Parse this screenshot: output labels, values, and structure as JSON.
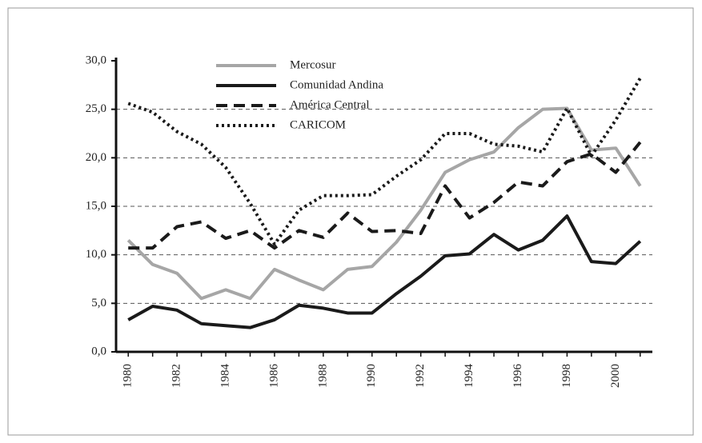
{
  "chart_data": {
    "type": "line",
    "x": [
      1980,
      1981,
      1982,
      1983,
      1984,
      1985,
      1986,
      1987,
      1988,
      1989,
      1990,
      1991,
      1992,
      1993,
      1994,
      1995,
      1996,
      1997,
      1998,
      1999,
      2000,
      2001
    ],
    "xlim": [
      1979.5,
      2001.5
    ],
    "xticks": [
      1980,
      1982,
      1984,
      1986,
      1988,
      1990,
      1992,
      1994,
      1996,
      1998,
      2000
    ],
    "ylim": [
      0,
      30
    ],
    "yticks": [
      {
        "value": 0,
        "label": "0,0"
      },
      {
        "value": 5,
        "label": "5,0"
      },
      {
        "value": 10,
        "label": "10,0"
      },
      {
        "value": 15,
        "label": "15,0"
      },
      {
        "value": 20,
        "label": "20,0"
      },
      {
        "value": 25,
        "label": "25,0"
      },
      {
        "value": 30,
        "label": "30,0"
      }
    ],
    "grid": true,
    "series": [
      {
        "name": "Mercosur",
        "color": "#a6a6a6",
        "style": "solid",
        "values": [
          11.5,
          9.0,
          8.1,
          5.5,
          6.4,
          5.5,
          8.5,
          7.4,
          6.4,
          8.5,
          8.8,
          11.3,
          14.6,
          18.5,
          19.8,
          20.6,
          23.1,
          25.0,
          25.1,
          20.8,
          21.0,
          17.1
        ]
      },
      {
        "name": "Comunidad Andina",
        "color": "#1a1a1a",
        "style": "solid",
        "values": [
          3.3,
          4.7,
          4.3,
          2.9,
          2.7,
          2.5,
          3.3,
          4.8,
          4.5,
          4.0,
          4.0,
          6.0,
          7.8,
          9.9,
          10.1,
          12.1,
          10.5,
          11.5,
          14.0,
          9.3,
          9.1,
          11.4
        ]
      },
      {
        "name": "América Central",
        "color": "#1a1a1a",
        "style": "dashed",
        "values": [
          10.7,
          10.7,
          12.9,
          13.4,
          11.7,
          12.5,
          10.7,
          12.5,
          11.8,
          14.3,
          12.4,
          12.5,
          12.2,
          17.1,
          13.8,
          15.4,
          17.5,
          17.1,
          19.6,
          20.4,
          18.5,
          21.6
        ]
      },
      {
        "name": "CARICOM",
        "color": "#1a1a1a",
        "style": "dotted",
        "values": [
          25.6,
          24.7,
          22.7,
          21.4,
          19.0,
          15.3,
          11.1,
          14.6,
          16.1,
          16.1,
          16.2,
          18.1,
          19.8,
          22.5,
          22.5,
          21.4,
          21.2,
          20.6,
          25.1,
          20.2,
          23.9,
          28.2
        ]
      }
    ]
  }
}
